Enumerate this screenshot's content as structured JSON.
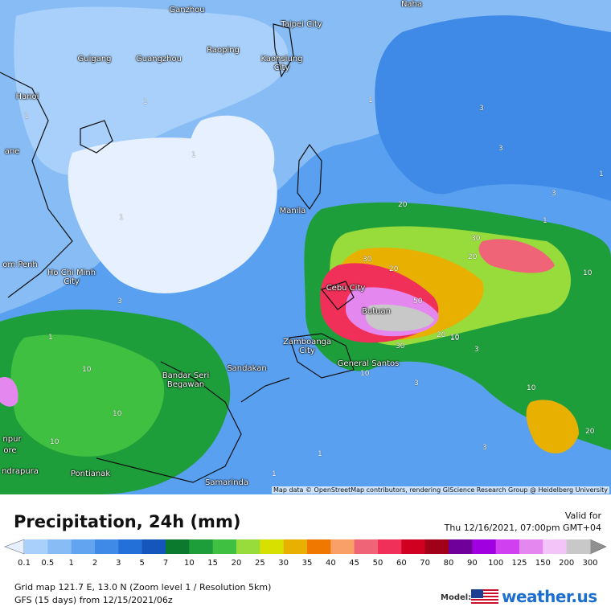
{
  "map": {
    "cities": [
      "Ganzhou",
      "Naha",
      "Taipei City",
      "Guigang",
      "Guangzhou",
      "Raoping",
      "Kaohsiung City",
      "Hanoi",
      "ane",
      "Manila",
      "om Penh",
      "Ho Chi Minh City",
      "Cebu City",
      "Butuan",
      "Zamboanga City",
      "General Santos",
      "Sandakan",
      "Bandar Seri Begawan",
      "npur",
      "ore",
      "ndrapura",
      "Pontianak",
      "Samarinda"
    ],
    "contour_labels": [
      1,
      1,
      1,
      1,
      1,
      1,
      1,
      1,
      3,
      3,
      3,
      3,
      3,
      3,
      10,
      10,
      10,
      10,
      10,
      10,
      10,
      20,
      20,
      20,
      20,
      30,
      30,
      30,
      50,
      1,
      1,
      3,
      10,
      20
    ],
    "attribution": "Map data © OpenStreetMap contributors, rendering GIScience Research Group @ Heidelberg University"
  },
  "header": {
    "title": "Precipitation, 24h (mm)",
    "valid_label": "Valid for",
    "valid_time": "Thu 12/16/2021, 07:00pm GMT+04"
  },
  "legend": {
    "labels": [
      0.1,
      0.5,
      1,
      2,
      3,
      5,
      7,
      10,
      15,
      20,
      25,
      30,
      35,
      40,
      45,
      50,
      60,
      70,
      80,
      90,
      100,
      125,
      150,
      200,
      300
    ],
    "colors": [
      "#a8d0fa",
      "#88bcf5",
      "#62a4f0",
      "#3f8ae6",
      "#2270d8",
      "#1456bc",
      "#0c7a2e",
      "#1e9e3a",
      "#40c040",
      "#98dc3c",
      "#d8e000",
      "#e8b000",
      "#f07800",
      "#f8a068",
      "#f06478",
      "#f03058",
      "#d00020",
      "#a00018",
      "#70009a",
      "#a000e0",
      "#d040f0",
      "#e488f0",
      "#f2c4f8",
      "#c8c8c8"
    ],
    "low_color": "#e6f0ff",
    "high_color": "#909090"
  },
  "footer": {
    "grid": "Grid map 121.7 E, 13.0 N (Zoom level 1 / Resolution 5km)",
    "model": "GFS (15 days) from 12/15/2021/06z",
    "model_label": "Model:",
    "brand": "weather.us"
  }
}
